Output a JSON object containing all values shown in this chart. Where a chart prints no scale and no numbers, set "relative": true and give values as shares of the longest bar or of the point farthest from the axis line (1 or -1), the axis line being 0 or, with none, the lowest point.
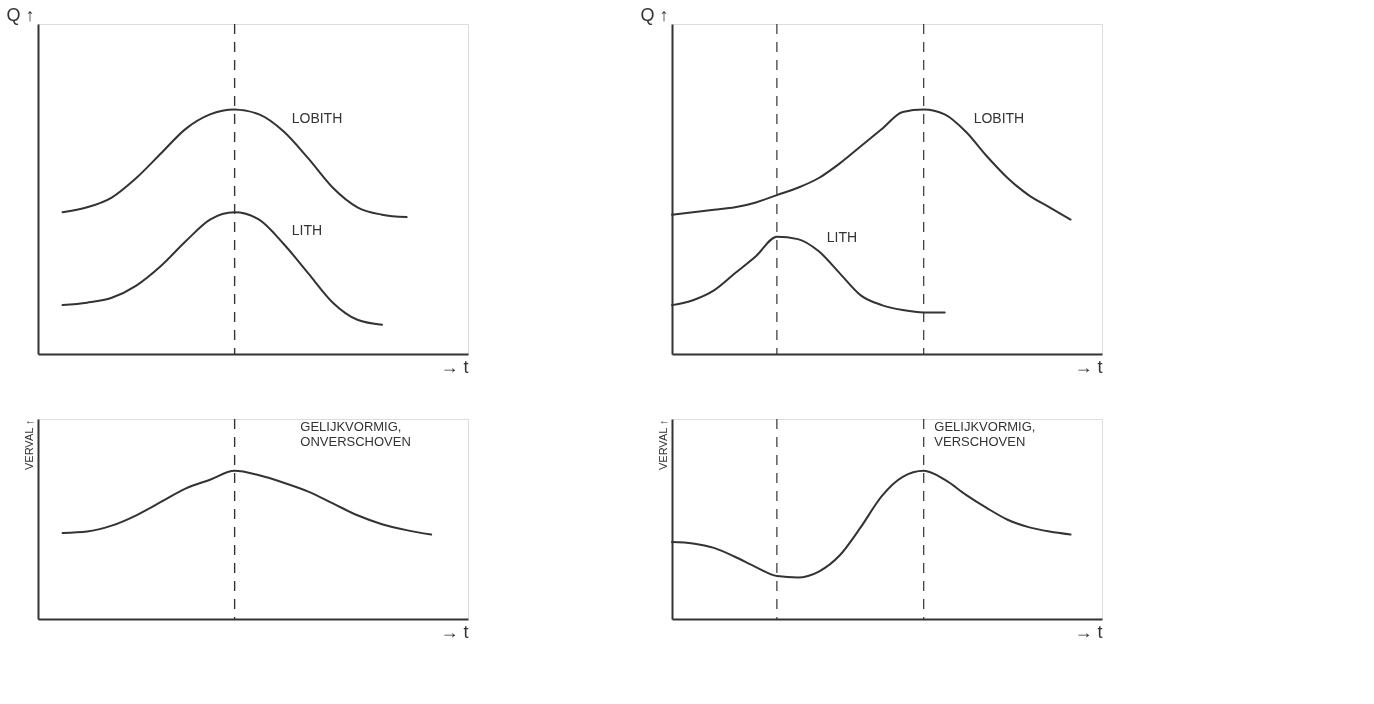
{
  "chart_data": [
    {
      "type": "line",
      "relative": true,
      "ylabel": "Q ↑",
      "xlabel": "→ t",
      "categories": [
        null,
        null,
        null,
        null,
        null,
        null,
        null,
        null,
        null,
        null,
        null,
        null,
        null,
        null,
        null,
        null,
        null,
        null
      ],
      "marker": "none",
      "line_style": "solid",
      "series": [
        {
          "name": "LOBITH",
          "color": "#333333",
          "values": [
            null,
            0.58,
            0.6,
            0.64,
            0.72,
            0.82,
            0.92,
            0.98,
            1.0,
            0.98,
            0.91,
            0.8,
            0.68,
            0.6,
            0.57,
            0.56,
            null,
            null
          ]
        },
        {
          "name": "LITH",
          "color": "#333333",
          "values": [
            null,
            0.2,
            0.21,
            0.23,
            0.28,
            0.36,
            0.46,
            0.55,
            0.58,
            0.55,
            0.45,
            0.33,
            0.21,
            0.14,
            0.12,
            null,
            null,
            null
          ]
        }
      ]
    },
    {
      "type": "line",
      "relative": true,
      "ylabel": "Q ↑",
      "xlabel": "→ t",
      "categories": [
        null,
        null,
        null,
        null,
        null,
        null,
        null,
        null,
        null,
        null,
        null,
        null,
        null,
        null,
        null,
        null,
        null,
        null,
        null,
        null,
        null
      ],
      "marker": "none",
      "line_style": "solid",
      "series": [
        {
          "name": "LOBITH",
          "color": "#333333",
          "values": [
            0.57,
            0.58,
            0.59,
            0.6,
            0.62,
            0.65,
            0.68,
            0.72,
            0.78,
            0.85,
            0.92,
            0.99,
            1.0,
            0.98,
            0.91,
            0.81,
            0.72,
            0.65,
            0.6,
            0.55,
            null
          ]
        },
        {
          "name": "LITH",
          "color": "#333333",
          "values": [
            0.2,
            0.22,
            0.26,
            0.33,
            0.4,
            0.48,
            0.47,
            0.42,
            0.33,
            0.24,
            0.2,
            0.18,
            0.17,
            0.17,
            null,
            null,
            null,
            null,
            null,
            null,
            null
          ]
        }
      ]
    },
    {
      "type": "line",
      "relative": true,
      "ylabel": "VERVAL ↑",
      "xlabel": "→ t",
      "categories": [
        null,
        null,
        null,
        null,
        null,
        null,
        null,
        null,
        null,
        null,
        null,
        null,
        null,
        null,
        null,
        null,
        null,
        null
      ],
      "marker": "none",
      "line_style": "solid",
      "series": [
        {
          "color": "#333333",
          "values": [
            null,
            0.58,
            0.59,
            0.63,
            0.7,
            0.79,
            0.88,
            0.94,
            1.0,
            0.97,
            0.92,
            0.86,
            0.78,
            0.7,
            0.64,
            0.6,
            0.57,
            null
          ]
        }
      ],
      "annotations": [
        "GELIJKVORMIG,\nONVERSCHOVEN"
      ]
    },
    {
      "type": "line",
      "relative": true,
      "ylabel": "VERVAL ↑",
      "xlabel": "→ t",
      "categories": [
        null,
        null,
        null,
        null,
        null,
        null,
        null,
        null,
        null,
        null,
        null,
        null,
        null,
        null,
        null,
        null,
        null,
        null,
        null,
        null,
        null
      ],
      "marker": "none",
      "line_style": "solid",
      "series": [
        {
          "color": "#333333",
          "values": [
            0.52,
            0.51,
            0.48,
            0.42,
            0.35,
            0.29,
            0.28,
            0.32,
            0.43,
            0.62,
            0.83,
            0.96,
            1.0,
            0.94,
            0.84,
            0.75,
            0.67,
            0.62,
            0.59,
            0.57,
            null
          ]
        }
      ],
      "annotations": [
        "GELIJKVORMIG,\nVERSCHOVEN"
      ]
    }
  ]
}
